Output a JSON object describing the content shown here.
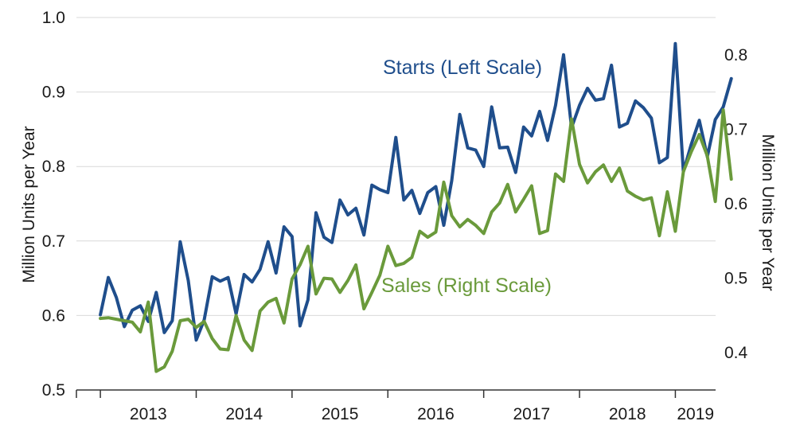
{
  "chart_data": {
    "type": "line",
    "xlabel": "",
    "x_tick_labels": [
      "2013",
      "2014",
      "2015",
      "2016",
      "2017",
      "2018",
      "2019"
    ],
    "xlim": [
      2012.75,
      2019.42
    ],
    "y_left": {
      "label": "Million Units  per Year",
      "lim": [
        0.5,
        1.0
      ],
      "ticks": [
        "0.5",
        "0.6",
        "0.7",
        "0.8",
        "0.9",
        "1.0"
      ],
      "grid": true
    },
    "y_right": {
      "label": "Million Units  per Year",
      "lim": [
        0.35,
        0.85
      ],
      "ticks": [
        "0.4",
        "0.5",
        "0.6",
        "0.7",
        "0.8"
      ]
    },
    "legend": "inline labels",
    "series": [
      {
        "name": "Starts (Left Scale)",
        "axis": "left",
        "color": "#1f4e8c",
        "start": "2013-01",
        "values": [
          0.601,
          0.651,
          0.624,
          0.585,
          0.607,
          0.613,
          0.592,
          0.631,
          0.577,
          0.593,
          0.699,
          0.647,
          0.567,
          0.594,
          0.652,
          0.646,
          0.651,
          0.602,
          0.655,
          0.645,
          0.662,
          0.699,
          0.657,
          0.719,
          0.706,
          0.586,
          0.621,
          0.738,
          0.705,
          0.698,
          0.755,
          0.735,
          0.744,
          0.708,
          0.775,
          0.769,
          0.765,
          0.839,
          0.755,
          0.768,
          0.737,
          0.765,
          0.773,
          0.721,
          0.781,
          0.87,
          0.825,
          0.822,
          0.8,
          0.88,
          0.825,
          0.826,
          0.792,
          0.853,
          0.841,
          0.874,
          0.835,
          0.882,
          0.95,
          0.852,
          0.882,
          0.905,
          0.889,
          0.891,
          0.936,
          0.853,
          0.858,
          0.888,
          0.879,
          0.865,
          0.805,
          0.812,
          0.965,
          0.793,
          0.83,
          0.862,
          0.813,
          0.863,
          0.88,
          0.918
        ]
      },
      {
        "name": "Sales (Right Scale)",
        "axis": "right",
        "color": "#6a9a3b",
        "start": "2013-01",
        "values": [
          0.446,
          0.447,
          0.445,
          0.443,
          0.441,
          0.428,
          0.468,
          0.375,
          0.381,
          0.402,
          0.443,
          0.445,
          0.434,
          0.442,
          0.419,
          0.405,
          0.404,
          0.45,
          0.417,
          0.403,
          0.456,
          0.468,
          0.473,
          0.44,
          0.499,
          0.518,
          0.543,
          0.479,
          0.5,
          0.499,
          0.481,
          0.497,
          0.518,
          0.459,
          0.481,
          0.504,
          0.543,
          0.517,
          0.52,
          0.528,
          0.563,
          0.555,
          0.562,
          0.629,
          0.584,
          0.569,
          0.579,
          0.571,
          0.56,
          0.589,
          0.601,
          0.626,
          0.589,
          0.606,
          0.624,
          0.56,
          0.564,
          0.64,
          0.63,
          0.714,
          0.653,
          0.628,
          0.643,
          0.652,
          0.63,
          0.648,
          0.617,
          0.61,
          0.605,
          0.608,
          0.557,
          0.616,
          0.563,
          0.643,
          0.67,
          0.693,
          0.664,
          0.603,
          0.726,
          0.633
        ]
      }
    ],
    "annotations": [
      "Starts (Left Scale)",
      "Sales (Right Scale)"
    ]
  }
}
